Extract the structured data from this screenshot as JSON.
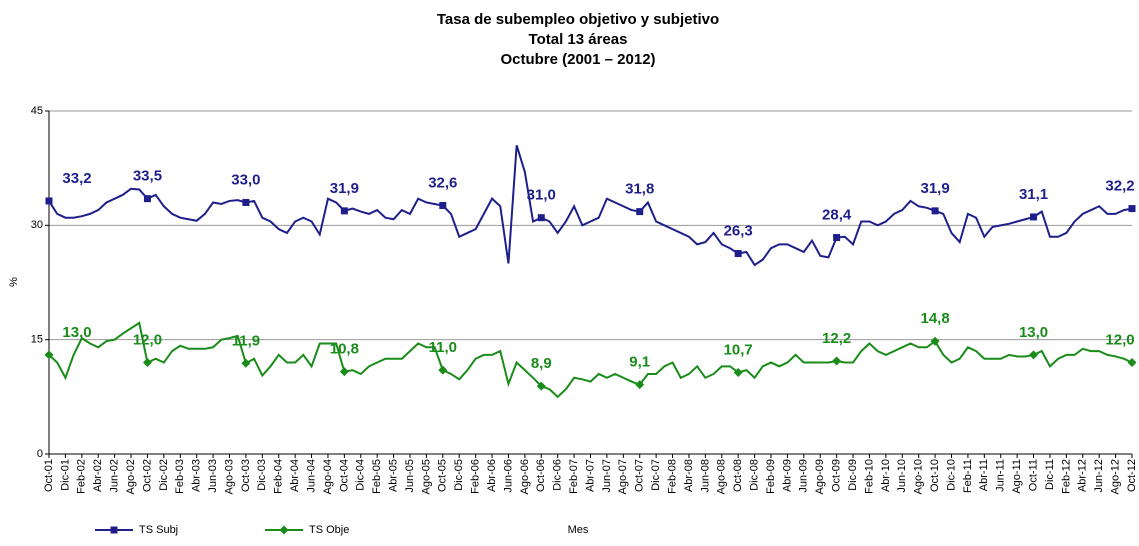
{
  "chart_data": {
    "type": "line",
    "title": [
      "Tasa de subempleo objetivo y subjetivo",
      "Total 13 áreas",
      "Octubre (2001 – 2012)"
    ],
    "x_label": "Mes",
    "y_label": "%",
    "categories": [
      "Oct-01",
      null,
      "Dic-01",
      null,
      "Feb-02",
      null,
      "Abr-02",
      null,
      "Jun-02",
      null,
      "Ago-02",
      null,
      "Oct-02",
      null,
      "Dic-02",
      null,
      "Feb-03",
      null,
      "Abr-03",
      null,
      "Jun-03",
      null,
      "Ago-03",
      null,
      "Oct-03",
      null,
      "Dic-03",
      null,
      "Feb-04",
      null,
      "Abr-04",
      null,
      "Jun-04",
      null,
      "Ago-04",
      null,
      "Oct-04",
      null,
      "Dic-04",
      null,
      "Feb-05",
      null,
      "Abr-05",
      null,
      "Jun-05",
      null,
      "Ago-05",
      null,
      "Oct-05",
      null,
      "Dic-05",
      null,
      "Feb-06",
      null,
      "Abr-06",
      null,
      "Jun-06",
      null,
      "Ago-06",
      null,
      "Oct-06",
      null,
      "Dic-06",
      null,
      "Feb-07",
      null,
      "Abr-07",
      null,
      "Jun-07",
      null,
      "Ago-07",
      null,
      "Oct-07",
      null,
      "Dic-07",
      null,
      "Feb-08",
      null,
      "Abr-08",
      null,
      "Jun-08",
      null,
      "Ago-08",
      null,
      "Oct-08",
      null,
      "Dic-08",
      null,
      "Feb-09",
      null,
      "Abr-09",
      null,
      "Jun-09",
      null,
      "Ago-09",
      null,
      "Oct-09",
      null,
      "Dic-09",
      null,
      "Feb-10",
      null,
      "Abr-10",
      null,
      "Jun-10",
      null,
      "Ago-10",
      null,
      "Oct-10",
      null,
      "Dic-10",
      null,
      "Feb-11",
      null,
      "Abr-11",
      null,
      "Jun-11",
      null,
      "Ago-11",
      null,
      "Oct-11",
      null,
      "Dic-11",
      null,
      "Feb-12",
      null,
      "Abr-12",
      null,
      "Jun-12",
      null,
      "Ago-12",
      null,
      "Oct-12"
    ],
    "series": [
      {
        "name": "TS Subj",
        "color": "#1f1f8c",
        "marker": "square",
        "values": [
          33.2,
          31.5,
          31.0,
          31.0,
          31.2,
          31.5,
          32.0,
          33.0,
          33.5,
          34.0,
          34.8,
          34.7,
          33.5,
          34.0,
          32.5,
          31.5,
          31.0,
          30.8,
          30.6,
          31.5,
          33.0,
          32.8,
          33.2,
          33.3,
          33.0,
          33.2,
          31.0,
          30.5,
          29.5,
          29.0,
          30.5,
          31.0,
          30.5,
          28.8,
          33.5,
          33.0,
          31.9,
          32.2,
          31.8,
          31.5,
          32.0,
          31.0,
          30.8,
          32.0,
          31.5,
          33.5,
          33.0,
          32.8,
          32.6,
          31.5,
          28.5,
          29.0,
          29.5,
          31.5,
          33.5,
          32.5,
          25.0,
          40.5,
          37.0,
          30.5,
          31.0,
          30.5,
          29.0,
          30.5,
          32.5,
          30.0,
          30.5,
          31.0,
          33.5,
          33.0,
          32.5,
          32.0,
          31.8,
          33.0,
          30.5,
          30.0,
          29.5,
          29.0,
          28.5,
          27.5,
          27.8,
          29.0,
          27.5,
          27.0,
          26.3,
          26.5,
          24.8,
          25.5,
          27.0,
          27.5,
          27.5,
          27.0,
          26.5,
          28.0,
          26.0,
          25.8,
          28.4,
          28.5,
          27.5,
          30.5,
          30.5,
          30.0,
          30.5,
          31.5,
          32.0,
          33.2,
          32.5,
          32.3,
          31.9,
          31.5,
          29.0,
          27.8,
          31.5,
          31.0,
          28.5,
          29.8,
          30.0,
          30.2,
          30.5,
          30.8,
          31.1,
          31.8,
          28.5,
          28.5,
          29.0,
          30.5,
          31.5,
          32.0,
          32.5,
          31.5,
          31.5,
          32.0,
          32.2
        ],
        "value_labels": [
          "33,2",
          null,
          null,
          null,
          null,
          null,
          null,
          null,
          null,
          null,
          null,
          null,
          "33,5",
          null,
          null,
          null,
          null,
          null,
          null,
          null,
          null,
          null,
          null,
          null,
          "33,0",
          null,
          null,
          null,
          null,
          null,
          null,
          null,
          null,
          null,
          null,
          null,
          "31,9",
          null,
          null,
          null,
          null,
          null,
          null,
          null,
          null,
          null,
          null,
          null,
          "32,6",
          null,
          null,
          null,
          null,
          null,
          null,
          null,
          null,
          null,
          null,
          null,
          "31,0",
          null,
          null,
          null,
          null,
          null,
          null,
          null,
          null,
          null,
          null,
          null,
          "31,8",
          null,
          null,
          null,
          null,
          null,
          null,
          null,
          null,
          null,
          null,
          null,
          "26,3",
          null,
          null,
          null,
          null,
          null,
          null,
          null,
          null,
          null,
          null,
          null,
          "28,4",
          null,
          null,
          null,
          null,
          null,
          null,
          null,
          null,
          null,
          null,
          null,
          "31,9",
          null,
          null,
          null,
          null,
          null,
          null,
          null,
          null,
          null,
          null,
          null,
          "31,1",
          null,
          null,
          null,
          null,
          null,
          null,
          null,
          null,
          null,
          null,
          null,
          "32,2"
        ]
      },
      {
        "name": "TS Obje",
        "color": "#1a8c1a",
        "marker": "diamond",
        "values": [
          13.0,
          12.0,
          10.0,
          13.0,
          15.2,
          14.5,
          14.0,
          14.8,
          15.0,
          15.8,
          16.5,
          17.2,
          12.0,
          12.5,
          12.0,
          13.5,
          14.2,
          13.8,
          13.8,
          13.8,
          14.0,
          15.0,
          15.2,
          15.5,
          11.9,
          12.5,
          10.3,
          11.5,
          13.0,
          12.0,
          12.0,
          13.0,
          11.5,
          14.5,
          14.5,
          14.5,
          10.8,
          11.0,
          10.5,
          11.5,
          12.0,
          12.5,
          12.5,
          12.5,
          13.5,
          14.5,
          14.0,
          14.0,
          11.0,
          10.5,
          9.8,
          11.0,
          12.5,
          13.0,
          13.0,
          13.5,
          9.2,
          12.0,
          11.0,
          10.0,
          8.9,
          8.5,
          7.5,
          8.5,
          10.0,
          9.8,
          9.5,
          10.5,
          10.0,
          10.5,
          10.0,
          9.5,
          9.1,
          10.5,
          10.5,
          11.5,
          12.0,
          10.0,
          10.5,
          11.5,
          10.0,
          10.5,
          11.5,
          11.5,
          10.7,
          11.0,
          10.0,
          11.5,
          12.0,
          11.5,
          12.0,
          13.0,
          12.0,
          12.0,
          12.0,
          12.0,
          12.2,
          12.0,
          12.0,
          13.5,
          14.5,
          13.5,
          13.0,
          13.5,
          14.0,
          14.5,
          14.0,
          14.0,
          14.8,
          13.0,
          12.0,
          12.5,
          14.0,
          13.5,
          12.5,
          12.5,
          12.5,
          13.0,
          12.8,
          12.8,
          13.0,
          13.5,
          11.5,
          12.5,
          13.0,
          13.0,
          13.8,
          13.5,
          13.5,
          13.0,
          12.8,
          12.5,
          12.0
        ],
        "value_labels": [
          "13,0",
          null,
          null,
          null,
          null,
          null,
          null,
          null,
          null,
          null,
          null,
          null,
          "12,0",
          null,
          null,
          null,
          null,
          null,
          null,
          null,
          null,
          null,
          null,
          null,
          "11,9",
          null,
          null,
          null,
          null,
          null,
          null,
          null,
          null,
          null,
          null,
          null,
          "10,8",
          null,
          null,
          null,
          null,
          null,
          null,
          null,
          null,
          null,
          null,
          null,
          "11,0",
          null,
          null,
          null,
          null,
          null,
          null,
          null,
          null,
          null,
          null,
          null,
          "8,9",
          null,
          null,
          null,
          null,
          null,
          null,
          null,
          null,
          null,
          null,
          null,
          "9,1",
          null,
          null,
          null,
          null,
          null,
          null,
          null,
          null,
          null,
          null,
          null,
          "10,7",
          null,
          null,
          null,
          null,
          null,
          null,
          null,
          null,
          null,
          null,
          null,
          "12,2",
          null,
          null,
          null,
          null,
          null,
          null,
          null,
          null,
          null,
          null,
          null,
          "14,8",
          null,
          null,
          null,
          null,
          null,
          null,
          null,
          null,
          null,
          null,
          null,
          "13,0",
          null,
          null,
          null,
          null,
          null,
          null,
          null,
          null,
          null,
          null,
          null,
          "12,0"
        ]
      }
    ],
    "ylim": [
      0,
      45
    ],
    "yticks": [
      0,
      15,
      30,
      45
    ],
    "grid": true,
    "legend": "bottom-left"
  }
}
